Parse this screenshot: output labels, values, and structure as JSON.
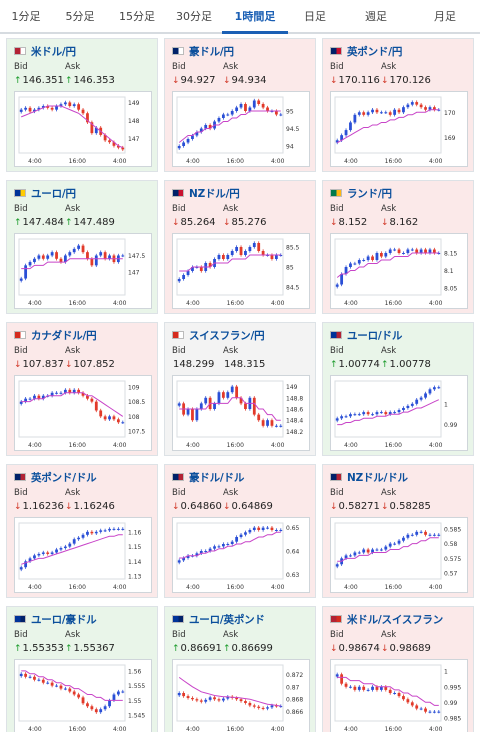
{
  "tabs": [
    "1分足",
    "5分足",
    "15分足",
    "30分足",
    "1時間足",
    "日足",
    "週足",
    "月足"
  ],
  "active_tab": 4,
  "labels": {
    "bid": "Bid",
    "ask": "Ask"
  },
  "colors": {
    "up_card": "#e9f5e9",
    "down_card": "#fbe9e9",
    "bull": "#2a4fd6",
    "bear": "#e23a2a",
    "ma": "#c844c8",
    "link": "#0b4f9c"
  },
  "pairs": [
    {
      "name": "米ドル/円",
      "flag": [
        "#b22234",
        "#ffffff"
      ],
      "dir": "up",
      "bid": "146.351",
      "ask": "146.353",
      "ticks": [
        "149",
        "148",
        "147"
      ],
      "ymin": 146.2,
      "ymax": 149.3,
      "prices": [
        148.6,
        148.7,
        148.5,
        148.6,
        148.7,
        148.8,
        148.7,
        148.6,
        148.8,
        148.9,
        149.0,
        148.8,
        148.9,
        148.6,
        148.4,
        147.9,
        147.3,
        147.6,
        147.2,
        146.9,
        146.8,
        146.6,
        146.5,
        146.4
      ],
      "ma": [
        148.2,
        148.3,
        148.4,
        148.5,
        148.6,
        148.7,
        148.8,
        148.8,
        148.8,
        148.8,
        148.7,
        148.6,
        148.5,
        148.4,
        148.2,
        148.0,
        147.8,
        147.6,
        147.4,
        147.2,
        147.0,
        146.8,
        146.6,
        146.5
      ]
    },
    {
      "name": "豪ドル/円",
      "flag": [
        "#012169",
        "#ffffff"
      ],
      "dir": "down",
      "bid": "94.927",
      "ask": "94.934",
      "ticks": [
        "95",
        "94.5",
        "94"
      ],
      "ymin": 93.8,
      "ymax": 95.4,
      "prices": [
        94.0,
        94.1,
        94.2,
        94.3,
        94.4,
        94.5,
        94.6,
        94.5,
        94.7,
        94.8,
        94.9,
        94.9,
        95.0,
        95.1,
        95.2,
        95.0,
        95.1,
        95.3,
        95.2,
        95.1,
        95.0,
        95.0,
        94.9,
        94.9
      ],
      "ma": [
        94.1,
        94.2,
        94.3,
        94.3,
        94.4,
        94.4,
        94.5,
        94.5,
        94.6,
        94.6,
        94.7,
        94.7,
        94.8,
        94.8,
        94.9,
        94.9,
        95.0,
        95.0,
        95.0,
        95.0,
        95.0,
        95.0,
        95.0,
        95.0
      ]
    },
    {
      "name": "英ポンド/円",
      "flag": [
        "#012169",
        "#c8102e"
      ],
      "dir": "down",
      "bid": "170.116",
      "ask": "170.126",
      "ticks": [
        "170",
        "169"
      ],
      "ymin": 168.4,
      "ymax": 170.6,
      "prices": [
        168.9,
        169.1,
        169.3,
        169.6,
        169.9,
        170.0,
        169.9,
        170.0,
        170.1,
        170.0,
        170.0,
        170.0,
        169.9,
        170.1,
        170.0,
        170.2,
        170.3,
        170.4,
        170.3,
        170.2,
        170.1,
        170.2,
        170.1,
        170.1
      ],
      "ma": [
        168.8,
        168.9,
        169.0,
        169.1,
        169.2,
        169.3,
        169.4,
        169.4,
        169.5,
        169.5,
        169.6,
        169.6,
        169.7,
        169.7,
        169.8,
        169.8,
        169.9,
        169.9,
        170.0,
        170.0,
        170.0,
        170.1,
        170.1,
        170.1
      ]
    },
    {
      "name": "ユーロ/円",
      "flag": [
        "#003399",
        "#ffcc00"
      ],
      "dir": "up",
      "bid": "147.484",
      "ask": "147.489",
      "ticks": [
        "147.5",
        "147"
      ],
      "ymin": 146.3,
      "ymax": 148.0,
      "prices": [
        146.8,
        147.2,
        147.3,
        147.4,
        147.5,
        147.4,
        147.5,
        147.6,
        147.4,
        147.3,
        147.5,
        147.6,
        147.7,
        147.8,
        147.6,
        147.4,
        147.2,
        147.5,
        147.6,
        147.4,
        147.5,
        147.3,
        147.5,
        147.5
      ],
      "ma": [
        147.1,
        147.1,
        147.1,
        147.2,
        147.2,
        147.2,
        147.3,
        147.3,
        147.3,
        147.3,
        147.3,
        147.4,
        147.4,
        147.4,
        147.4,
        147.4,
        147.4,
        147.4,
        147.4,
        147.4,
        147.4,
        147.4,
        147.4,
        147.4
      ]
    },
    {
      "name": "NZドル/円",
      "flag": [
        "#012169",
        "#c8102e"
      ],
      "dir": "down",
      "bid": "85.264",
      "ask": "85.276",
      "ticks": [
        "85.5",
        "85",
        "84.5"
      ],
      "ymin": 84.3,
      "ymax": 85.7,
      "prices": [
        84.7,
        84.8,
        84.9,
        85.0,
        85.0,
        84.9,
        85.1,
        85.0,
        85.2,
        85.3,
        85.2,
        85.3,
        85.4,
        85.5,
        85.3,
        85.4,
        85.5,
        85.6,
        85.4,
        85.3,
        85.3,
        85.2,
        85.3,
        85.3
      ],
      "ma": [
        84.9,
        84.9,
        84.9,
        85.0,
        85.0,
        85.0,
        85.0,
        85.0,
        85.1,
        85.1,
        85.1,
        85.1,
        85.2,
        85.2,
        85.2,
        85.2,
        85.3,
        85.3,
        85.3,
        85.3,
        85.3,
        85.3,
        85.3,
        85.3
      ]
    },
    {
      "name": "ランド/円",
      "flag": [
        "#007a4d",
        "#ffb612"
      ],
      "dir": "down",
      "bid": "8.152",
      "ask": "8.162",
      "ticks": [
        "8.15",
        "8.1",
        "8.05"
      ],
      "ymin": 8.03,
      "ymax": 8.19,
      "prices": [
        8.06,
        8.09,
        8.11,
        8.12,
        8.12,
        8.13,
        8.13,
        8.14,
        8.13,
        8.15,
        8.14,
        8.15,
        8.16,
        8.16,
        8.15,
        8.15,
        8.16,
        8.16,
        8.15,
        8.16,
        8.15,
        8.16,
        8.15,
        8.15
      ],
      "ma": [
        8.08,
        8.09,
        8.09,
        8.1,
        8.1,
        8.11,
        8.11,
        8.12,
        8.12,
        8.12,
        8.13,
        8.13,
        8.13,
        8.14,
        8.14,
        8.14,
        8.14,
        8.15,
        8.15,
        8.15,
        8.15,
        8.15,
        8.15,
        8.15
      ]
    },
    {
      "name": "カナダドル/円",
      "flag": [
        "#d52b1e",
        "#ffffff"
      ],
      "dir": "down",
      "bid": "107.837",
      "ask": "107.852",
      "ticks": [
        "109",
        "108.5",
        "108",
        "107.5"
      ],
      "ymin": 107.3,
      "ymax": 109.2,
      "prices": [
        108.5,
        108.6,
        108.6,
        108.7,
        108.6,
        108.7,
        108.7,
        108.8,
        108.8,
        108.8,
        108.9,
        108.8,
        108.9,
        108.8,
        108.7,
        108.6,
        108.5,
        108.2,
        108.0,
        107.9,
        108.0,
        107.9,
        107.8,
        107.8
      ],
      "ma": [
        108.5,
        108.5,
        108.5,
        108.6,
        108.6,
        108.6,
        108.7,
        108.7,
        108.7,
        108.7,
        108.8,
        108.8,
        108.8,
        108.8,
        108.8,
        108.7,
        108.7,
        108.6,
        108.5,
        108.4,
        108.3,
        108.2,
        108.1,
        108.0
      ]
    },
    {
      "name": "スイスフラン/円",
      "flag": [
        "#d52b1e",
        "#ffffff"
      ],
      "dir": "flat",
      "bid": "148.299",
      "ask": "148.315",
      "ticks": [
        "149",
        "148.8",
        "148.6",
        "148.4",
        "148.2"
      ],
      "ymin": 148.1,
      "ymax": 149.1,
      "prices": [
        148.7,
        148.5,
        148.6,
        148.4,
        148.6,
        148.7,
        148.8,
        148.6,
        148.7,
        148.9,
        148.8,
        148.9,
        149.0,
        148.8,
        148.7,
        148.6,
        148.8,
        148.5,
        148.4,
        148.3,
        148.4,
        148.3,
        148.3,
        148.3
      ],
      "ma": [
        148.6,
        148.6,
        148.6,
        148.6,
        148.6,
        148.6,
        148.6,
        148.7,
        148.7,
        148.7,
        148.7,
        148.7,
        148.8,
        148.8,
        148.8,
        148.7,
        148.7,
        148.7,
        148.6,
        148.6,
        148.5,
        148.5,
        148.4,
        148.4
      ]
    },
    {
      "name": "ユーロ/ドル",
      "flag": [
        "#003399",
        "#b22234"
      ],
      "dir": "up",
      "bid": "1.00774",
      "ask": "1.00778",
      "ticks": [
        "1",
        "0.99"
      ],
      "ymin": 0.984,
      "ymax": 1.011,
      "prices": [
        0.993,
        0.994,
        0.994,
        0.995,
        0.995,
        0.995,
        0.996,
        0.995,
        0.995,
        0.996,
        0.996,
        0.995,
        0.996,
        0.996,
        0.997,
        0.998,
        0.999,
        1.0,
        1.002,
        1.003,
        1.005,
        1.007,
        1.008,
        1.008
      ],
      "ma": [
        0.99,
        0.99,
        0.991,
        0.991,
        0.992,
        0.992,
        0.993,
        0.993,
        0.993,
        0.994,
        0.994,
        0.994,
        0.995,
        0.995,
        0.995,
        0.996,
        0.996,
        0.997,
        0.998,
        0.998,
        0.999,
        1.0,
        1.001,
        1.002
      ]
    },
    {
      "name": "英ポンド/ドル",
      "flag": [
        "#012169",
        "#b22234"
      ],
      "dir": "down",
      "bid": "1.16236",
      "ask": "1.16246",
      "ticks": [
        "1.16",
        "1.15",
        "1.14",
        "1.13"
      ],
      "ymin": 1.128,
      "ymax": 1.166,
      "prices": [
        1.136,
        1.14,
        1.142,
        1.144,
        1.145,
        1.146,
        1.145,
        1.146,
        1.148,
        1.149,
        1.15,
        1.152,
        1.155,
        1.156,
        1.158,
        1.16,
        1.159,
        1.16,
        1.161,
        1.161,
        1.162,
        1.162,
        1.162,
        1.162
      ],
      "ma": [
        1.138,
        1.139,
        1.14,
        1.141,
        1.142,
        1.142,
        1.143,
        1.144,
        1.145,
        1.146,
        1.147,
        1.148,
        1.149,
        1.15,
        1.151,
        1.152,
        1.153,
        1.154,
        1.155,
        1.156,
        1.157,
        1.157,
        1.158,
        1.158
      ]
    },
    {
      "name": "豪ドル/ドル",
      "flag": [
        "#012169",
        "#b22234"
      ],
      "dir": "down",
      "bid": "0.64860",
      "ask": "0.64869",
      "ticks": [
        "0.65",
        "0.64",
        "0.63"
      ],
      "ymin": 0.628,
      "ymax": 0.652,
      "prices": [
        0.636,
        0.637,
        0.638,
        0.638,
        0.639,
        0.64,
        0.64,
        0.641,
        0.642,
        0.642,
        0.643,
        0.643,
        0.644,
        0.646,
        0.647,
        0.648,
        0.649,
        0.65,
        0.649,
        0.65,
        0.65,
        0.649,
        0.649,
        0.649
      ],
      "ma": [
        0.637,
        0.637,
        0.638,
        0.638,
        0.638,
        0.639,
        0.639,
        0.64,
        0.64,
        0.641,
        0.641,
        0.642,
        0.642,
        0.643,
        0.643,
        0.644,
        0.644,
        0.645,
        0.646,
        0.646,
        0.647,
        0.647,
        0.648,
        0.648
      ]
    },
    {
      "name": "NZドル/ドル",
      "flag": [
        "#012169",
        "#b22234"
      ],
      "dir": "down",
      "bid": "0.58271",
      "ask": "0.58285",
      "ticks": [
        "0.585",
        "0.58",
        "0.575",
        "0.57"
      ],
      "ymin": 0.568,
      "ymax": 0.587,
      "prices": [
        0.573,
        0.575,
        0.576,
        0.576,
        0.577,
        0.577,
        0.578,
        0.577,
        0.578,
        0.578,
        0.578,
        0.579,
        0.58,
        0.58,
        0.581,
        0.582,
        0.583,
        0.583,
        0.584,
        0.584,
        0.583,
        0.583,
        0.583,
        0.583
      ],
      "ma": [
        0.574,
        0.574,
        0.575,
        0.575,
        0.575,
        0.576,
        0.576,
        0.576,
        0.577,
        0.577,
        0.577,
        0.577,
        0.578,
        0.578,
        0.578,
        0.579,
        0.579,
        0.58,
        0.58,
        0.581,
        0.581,
        0.582,
        0.582,
        0.582
      ]
    },
    {
      "name": "ユーロ/豪ドル",
      "flag": [
        "#003399",
        "#012169"
      ],
      "dir": "up",
      "bid": "1.55353",
      "ask": "1.55367",
      "ticks": [
        "1.56",
        "1.555",
        "1.55",
        "1.545"
      ],
      "ymin": 1.543,
      "ymax": 1.562,
      "prices": [
        1.559,
        1.558,
        1.558,
        1.557,
        1.557,
        1.556,
        1.556,
        1.555,
        1.555,
        1.554,
        1.554,
        1.553,
        1.552,
        1.551,
        1.549,
        1.548,
        1.547,
        1.546,
        1.547,
        1.548,
        1.55,
        1.552,
        1.553,
        1.553
      ],
      "ma": [
        1.56,
        1.56,
        1.559,
        1.559,
        1.558,
        1.558,
        1.557,
        1.557,
        1.556,
        1.556,
        1.555,
        1.555,
        1.554,
        1.554,
        1.553,
        1.552,
        1.552,
        1.551,
        1.551,
        1.55,
        1.55,
        1.55,
        1.55,
        1.55
      ]
    },
    {
      "name": "ユーロ/英ポンド",
      "flag": [
        "#003399",
        "#012169"
      ],
      "dir": "up",
      "bid": "0.86691",
      "ask": "0.86699",
      "ticks": [
        "0.872",
        "0.87",
        "0.868",
        "0.866"
      ],
      "ymin": 0.8645,
      "ymax": 0.8735,
      "prices": [
        0.869,
        0.8685,
        0.8682,
        0.868,
        0.8678,
        0.8676,
        0.8679,
        0.8683,
        0.868,
        0.8678,
        0.8681,
        0.8684,
        0.8682,
        0.868,
        0.8677,
        0.8674,
        0.867,
        0.8668,
        0.8666,
        0.8665,
        0.8667,
        0.867,
        0.8669,
        0.8669
      ],
      "ma": [
        0.8715,
        0.871,
        0.8705,
        0.87,
        0.8696,
        0.8692,
        0.869,
        0.8688,
        0.8686,
        0.8685,
        0.8684,
        0.8684,
        0.8683,
        0.8683,
        0.8682,
        0.8681,
        0.868,
        0.8678,
        0.8676,
        0.8674,
        0.8672,
        0.8671,
        0.867,
        0.8669
      ]
    },
    {
      "name": "米ドル/スイスフラン",
      "flag": [
        "#b22234",
        "#d52b1e"
      ],
      "dir": "down",
      "bid": "0.98674",
      "ask": "0.98689",
      "ticks": [
        "1",
        "0.995",
        "0.99",
        "0.985"
      ],
      "ymin": 0.984,
      "ymax": 1.002,
      "prices": [
        0.999,
        0.996,
        0.995,
        0.995,
        0.994,
        0.995,
        0.994,
        0.994,
        0.995,
        0.994,
        0.995,
        0.994,
        0.993,
        0.993,
        0.992,
        0.991,
        0.99,
        0.989,
        0.988,
        0.988,
        0.987,
        0.987,
        0.987,
        0.987
      ],
      "ma": [
        0.998,
        0.998,
        0.998,
        0.997,
        0.997,
        0.997,
        0.996,
        0.996,
        0.996,
        0.995,
        0.995,
        0.995,
        0.995,
        0.994,
        0.994,
        0.993,
        0.993,
        0.992,
        0.992,
        0.991,
        0.99,
        0.99,
        0.989,
        0.989
      ]
    }
  ],
  "time_ticks": [
    "4:00",
    "16:00",
    "4:00"
  ]
}
